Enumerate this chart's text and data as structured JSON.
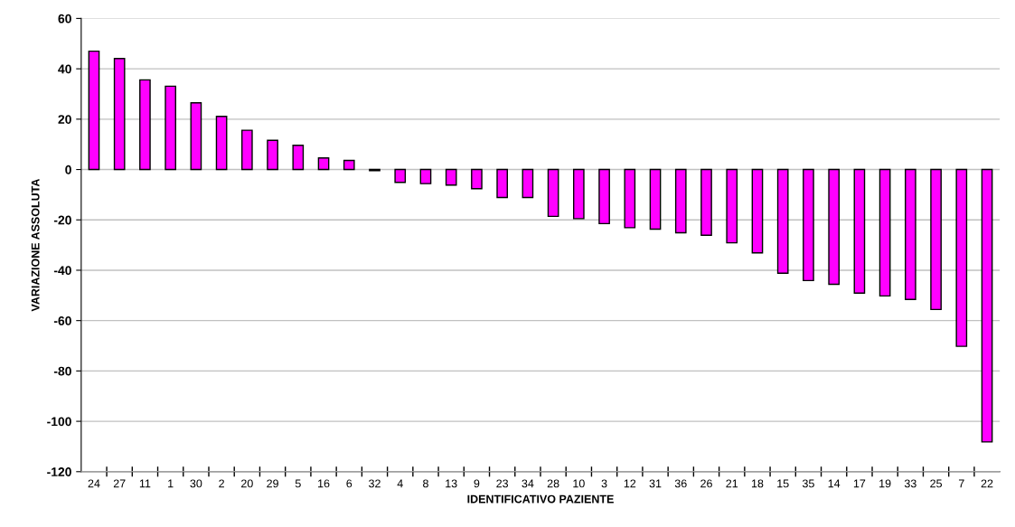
{
  "chart_data": {
    "type": "bar",
    "xlabel": "IDENTIFICATIVO PAZIENTE",
    "ylabel": "VARIAZIONE ASSOLUTA",
    "categories": [
      "24",
      "27",
      "11",
      "1",
      "30",
      "2",
      "20",
      "29",
      "5",
      "16",
      "6",
      "32",
      "4",
      "8",
      "13",
      "9",
      "23",
      "34",
      "28",
      "10",
      "3",
      "12",
      "31",
      "36",
      "26",
      "21",
      "18",
      "15",
      "35",
      "14",
      "17",
      "19",
      "33",
      "25",
      "7",
      "22"
    ],
    "values": [
      47.0,
      44.1,
      35.6,
      33.1,
      26.5,
      21.1,
      15.6,
      11.6,
      9.6,
      4.6,
      3.6,
      -0.5,
      -5.1,
      -5.6,
      -6.2,
      -7.6,
      -11.1,
      -11.1,
      -18.6,
      -19.5,
      -21.5,
      -23.1,
      -23.7,
      -25.1,
      -26.1,
      -29.1,
      -33.1,
      -41.2,
      -44.1,
      -45.6,
      -49.1,
      -50.2,
      -51.6,
      -55.6,
      -70.2,
      -108.2
    ],
    "color": "#ff00ff",
    "ylim": [
      -120,
      60
    ],
    "yticks": [
      -120,
      -100,
      -80,
      -60,
      -40,
      -20,
      0,
      20,
      40,
      60
    ],
    "grid": "y"
  }
}
